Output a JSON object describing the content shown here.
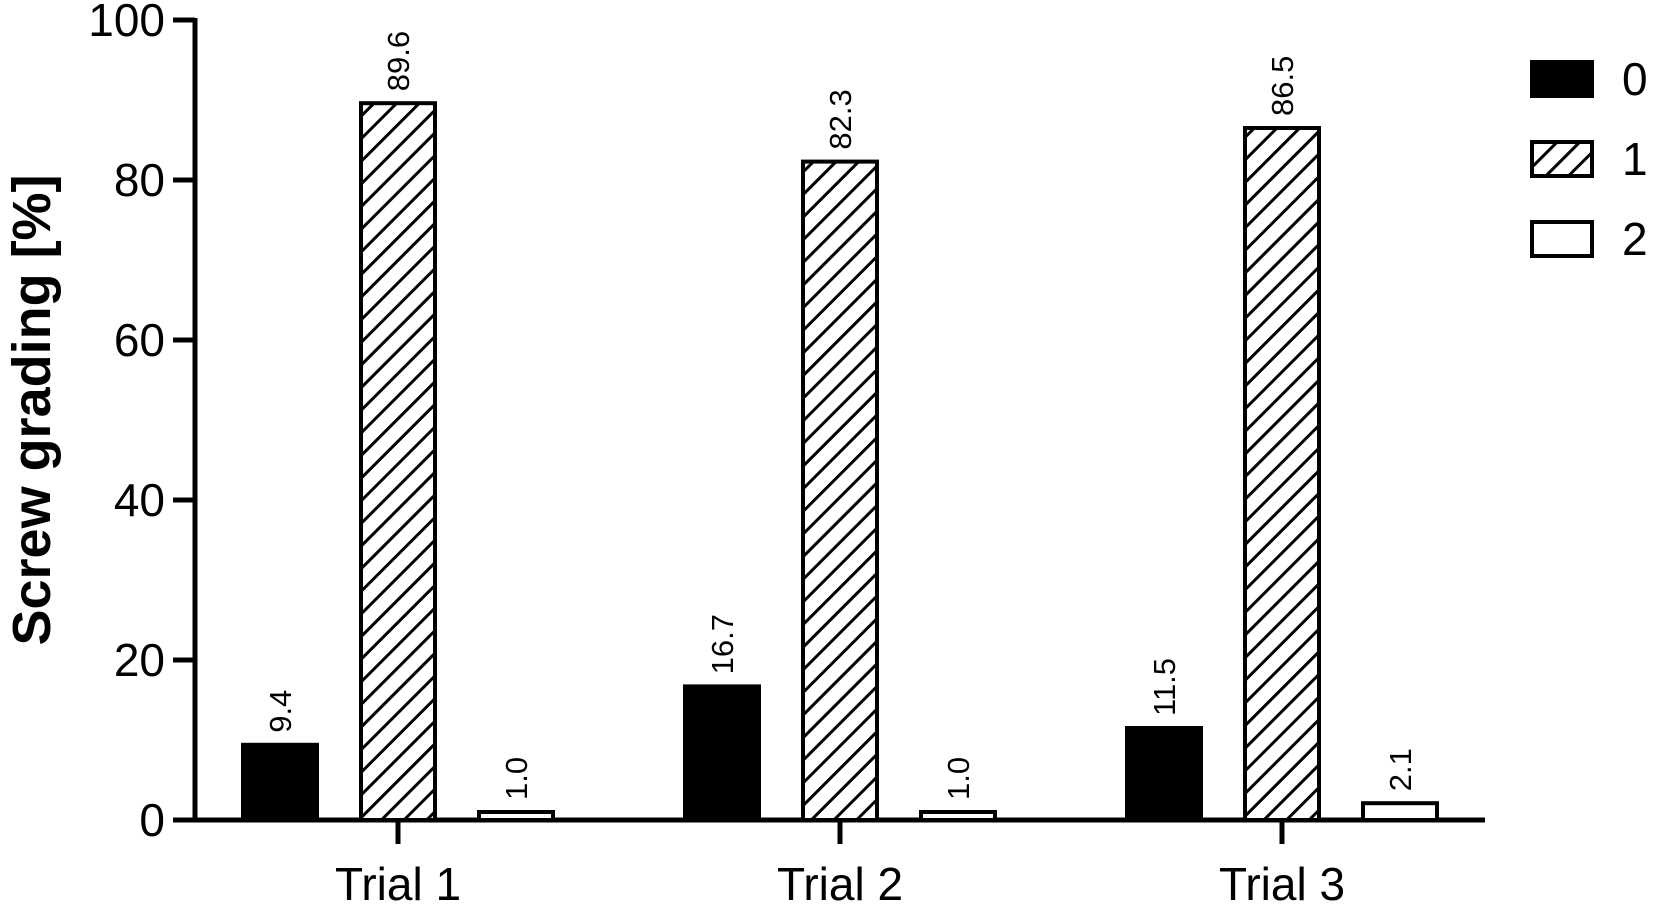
{
  "chart_data": {
    "type": "bar",
    "categories": [
      "Trial 1",
      "Trial 2",
      "Trial 3"
    ],
    "series": [
      {
        "name": "0",
        "values": [
          9.4,
          16.7,
          11.5
        ],
        "labels": [
          "9.4",
          "16.7",
          "11.5"
        ],
        "fill": "solid",
        "color": "#000000"
      },
      {
        "name": "1",
        "values": [
          89.6,
          82.3,
          86.5
        ],
        "labels": [
          "89.6",
          "82.3",
          "86.5"
        ],
        "fill": "hatched",
        "color": "#000000"
      },
      {
        "name": "2",
        "values": [
          1.0,
          1.0,
          2.1
        ],
        "labels": [
          "1.0",
          "1.0",
          "2.1"
        ],
        "fill": "empty",
        "color": "#ffffff"
      }
    ],
    "title": "",
    "xlabel": "",
    "ylabel": "Screw grading [%]",
    "ylim": [
      0,
      100
    ],
    "yticks": [
      0,
      20,
      40,
      60,
      80,
      100
    ],
    "ytick_labels": [
      "0",
      "20",
      "40",
      "60",
      "80",
      "100"
    ],
    "grid": false,
    "legend_position": "top-right"
  }
}
